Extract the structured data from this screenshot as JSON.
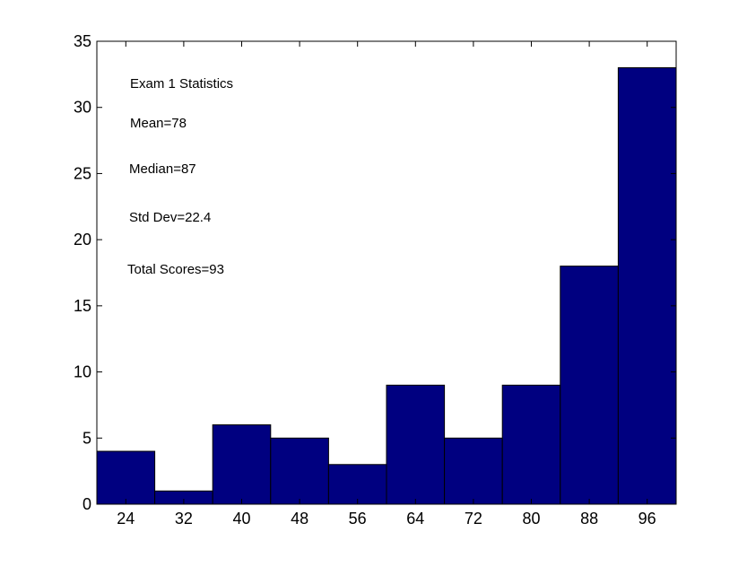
{
  "chart_data": {
    "type": "bar",
    "categories": [
      "24",
      "32",
      "40",
      "48",
      "56",
      "64",
      "72",
      "80",
      "88",
      "96"
    ],
    "values": [
      4,
      1,
      6,
      5,
      3,
      9,
      5,
      9,
      18,
      33
    ],
    "ylim": [
      0,
      35
    ],
    "yticks": [
      0,
      5,
      10,
      15,
      20,
      25,
      30,
      35
    ],
    "bar_color": "#000080",
    "grid": false,
    "annotations": [
      "Exam 1 Statistics",
      "Mean=78",
      "Median=87",
      "Std Dev=22.4",
      "Total Scores=93"
    ]
  }
}
